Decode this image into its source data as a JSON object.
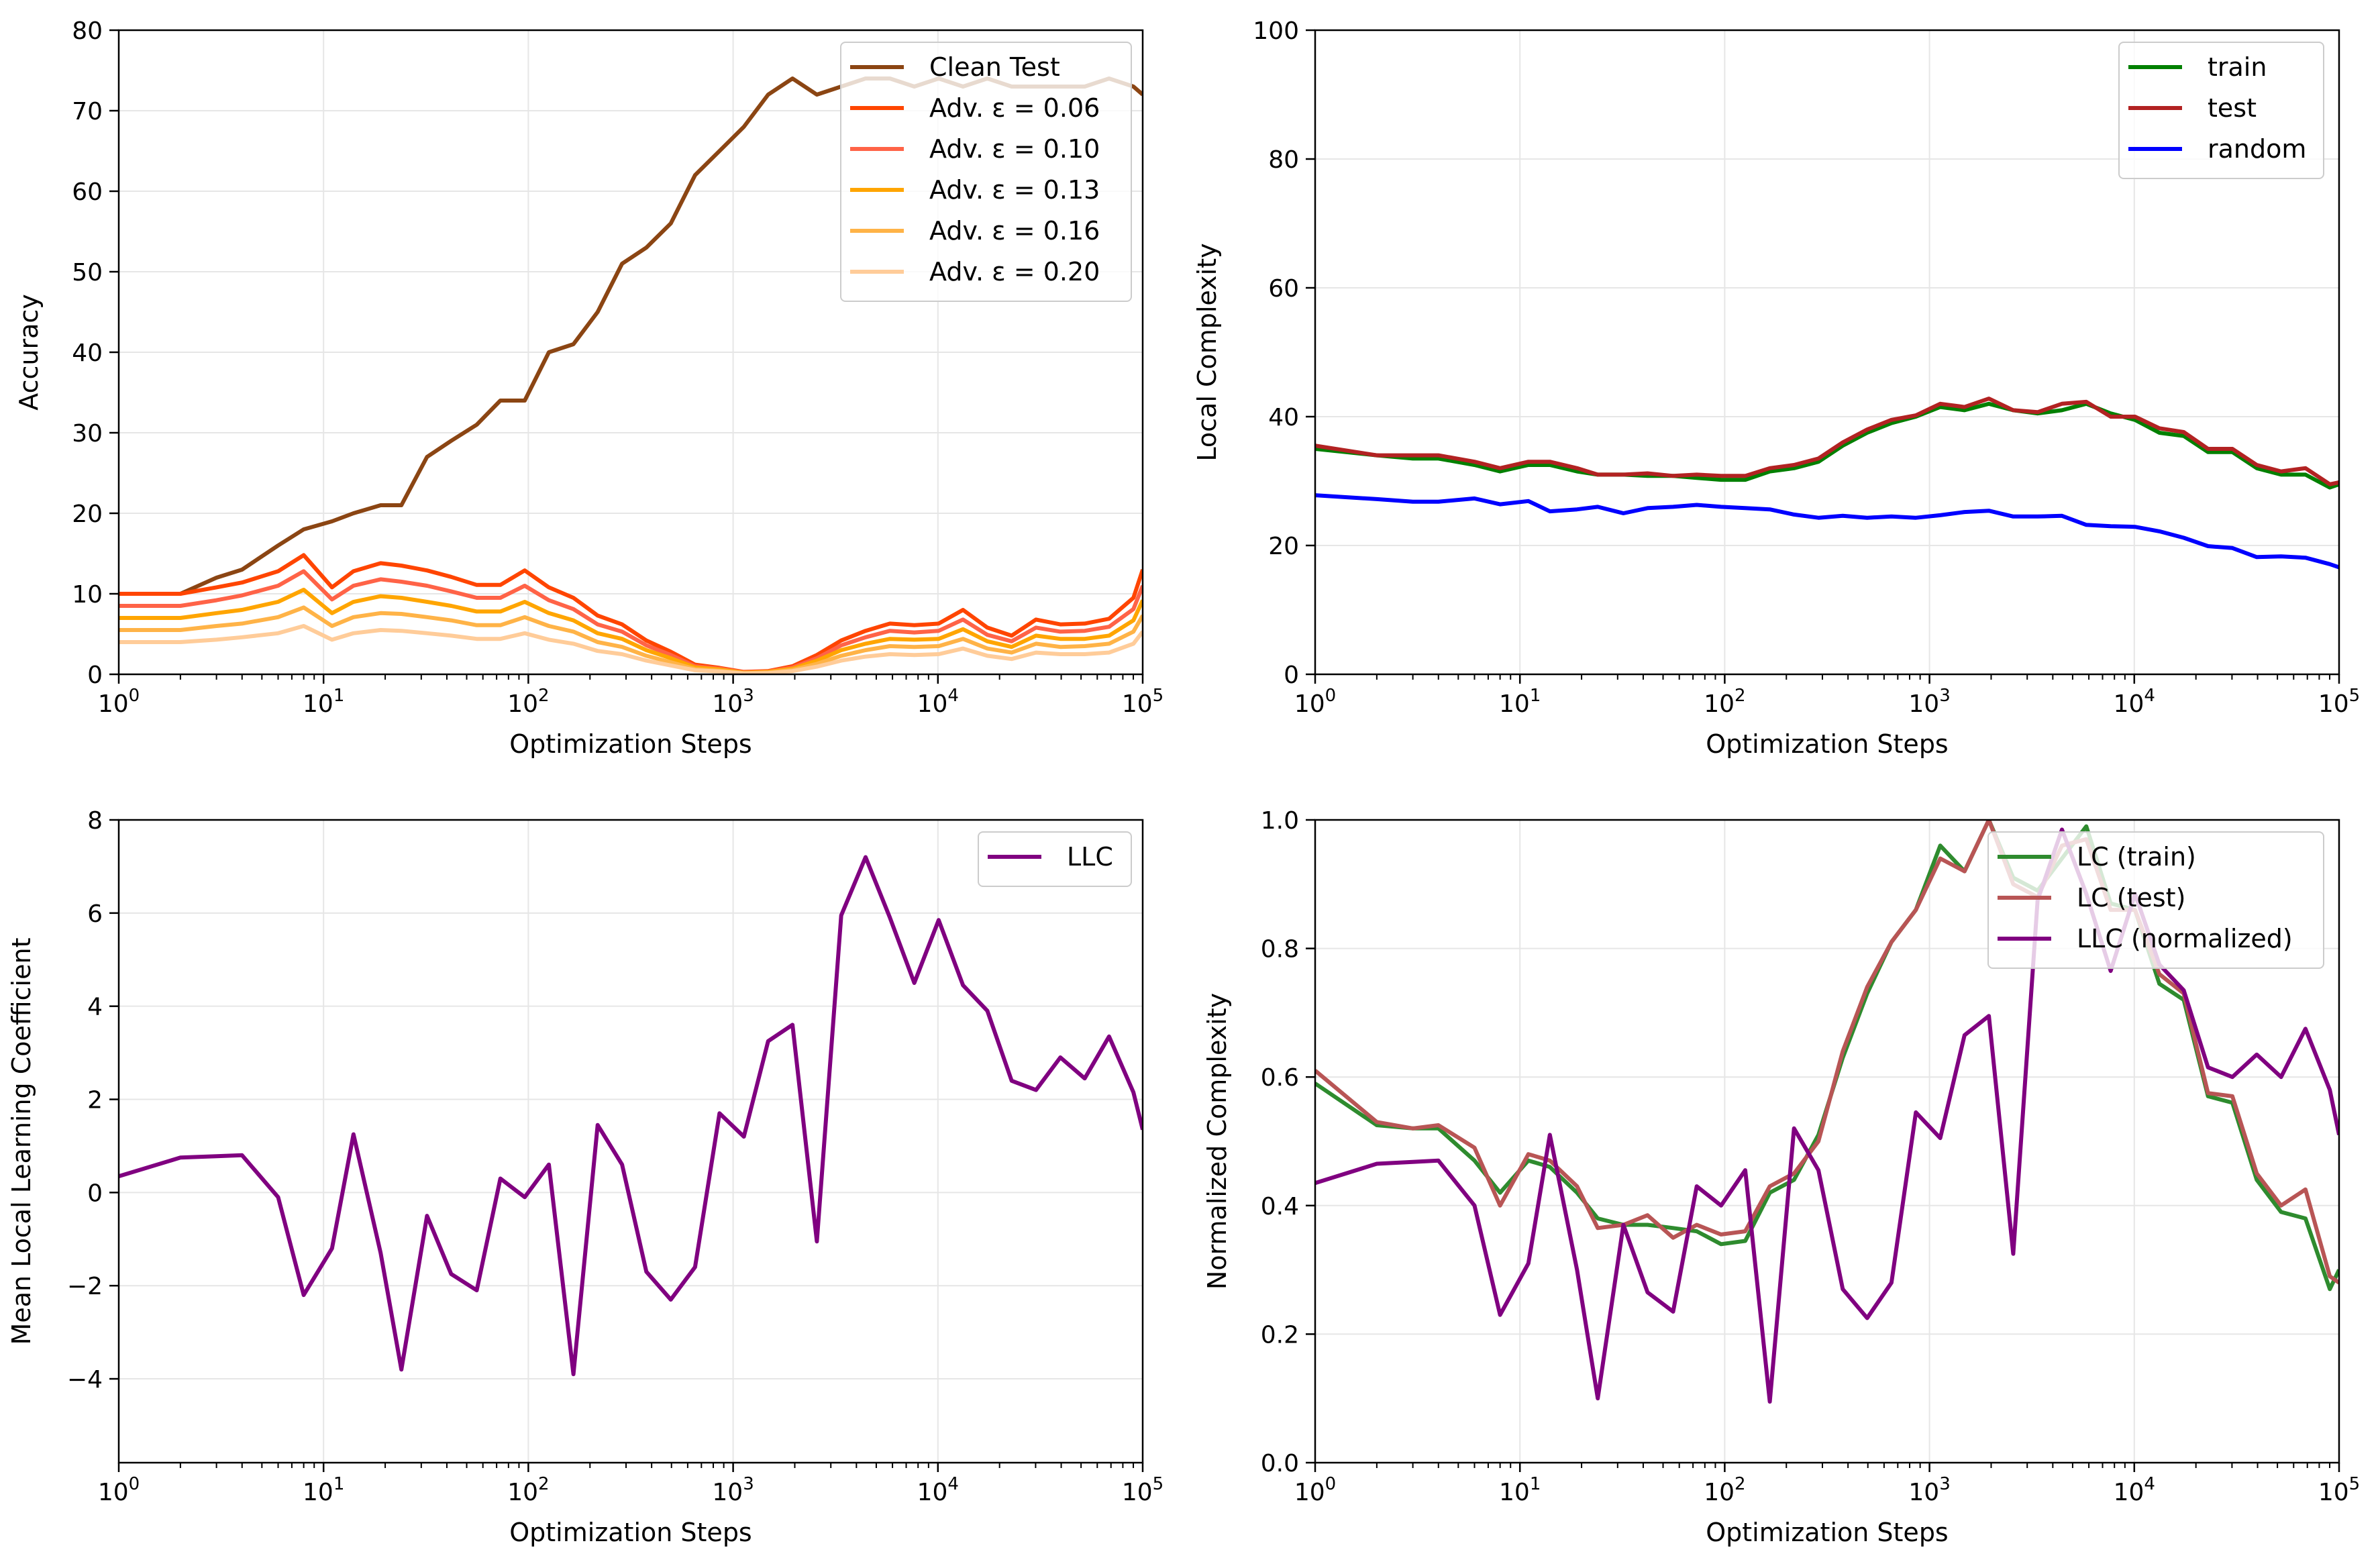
{
  "colors": {
    "clean": "#8B4513",
    "adv006": "#FF4500",
    "adv010": "#FF6347",
    "adv013": "#FFA500",
    "adv016": "#FFB347",
    "adv020": "#FFCC99",
    "train": "#008000",
    "test": "#B22222",
    "random": "#0000FF",
    "llc": "#800080",
    "lc_train_norm": "#2E8B2E",
    "lc_test_norm": "#B85555",
    "grid": "#e6e6e6"
  },
  "chart_data": [
    {
      "id": "accuracy",
      "type": "line",
      "xscale": "log",
      "xlim": [
        1,
        100000
      ],
      "ylim": [
        0,
        80
      ],
      "xlabel": "Optimization Steps",
      "ylabel": "Accuracy",
      "yticks": [
        "0",
        "10",
        "20",
        "30",
        "40",
        "50",
        "60",
        "70",
        "80"
      ],
      "legend_placement": "top-right",
      "grid": true,
      "x": [
        1,
        2,
        3,
        4,
        6,
        8,
        11,
        14,
        19,
        24,
        32,
        42,
        56,
        73,
        96,
        126,
        166,
        218,
        287,
        377,
        496,
        652,
        858,
        1128,
        1483,
        1950,
        2564,
        3372,
        4434,
        5830,
        7667,
        10081,
        13256,
        17432,
        22922,
        30142,
        39636,
        52120,
        68535,
        90121,
        100000
      ],
      "series": [
        {
          "name": "Clean Test",
          "color_key": "clean",
          "values": [
            10,
            10,
            12,
            13,
            16,
            18,
            19,
            20,
            21,
            21,
            27,
            29,
            31,
            34,
            34,
            40,
            41,
            45,
            51,
            53,
            56,
            62,
            65,
            68,
            72,
            74,
            72,
            73,
            74,
            74,
            73,
            74,
            73,
            74,
            73,
            73,
            73,
            73,
            74,
            73,
            72
          ]
        },
        {
          "name": "Adv. ε = 0.06",
          "color_key": "adv006",
          "values": [
            10,
            10,
            10.8,
            11.4,
            12.8,
            14.8,
            10.8,
            12.8,
            13.8,
            13.5,
            12.9,
            12.1,
            11.1,
            11.1,
            12.9,
            10.8,
            9.5,
            7.3,
            6.2,
            4.2,
            2.8,
            1.2,
            0.8,
            0.3,
            0.4,
            1.0,
            2.4,
            4.2,
            5.4,
            6.3,
            6.1,
            6.3,
            8.0,
            5.8,
            4.8,
            6.8,
            6.2,
            6.3,
            6.9,
            9.5,
            13.0
          ]
        },
        {
          "name": "Adv. ε = 0.10",
          "color_key": "adv010",
          "values": [
            8.5,
            8.5,
            9.2,
            9.8,
            11.0,
            12.8,
            9.3,
            11.0,
            11.8,
            11.5,
            11.0,
            10.3,
            9.5,
            9.5,
            11.0,
            9.2,
            8.1,
            6.2,
            5.3,
            3.6,
            2.4,
            1.0,
            0.7,
            0.25,
            0.35,
            0.85,
            2.0,
            3.6,
            4.6,
            5.4,
            5.2,
            5.4,
            6.8,
            4.9,
            4.1,
            5.8,
            5.3,
            5.4,
            5.9,
            8.1,
            11.0
          ]
        },
        {
          "name": "Adv. ε = 0.13",
          "color_key": "adv013",
          "values": [
            7.0,
            7.0,
            7.6,
            8.0,
            9.0,
            10.5,
            7.6,
            9.0,
            9.7,
            9.5,
            9.0,
            8.5,
            7.8,
            7.8,
            9.0,
            7.6,
            6.7,
            5.1,
            4.4,
            3.0,
            2.0,
            0.85,
            0.6,
            0.2,
            0.3,
            0.7,
            1.7,
            3.0,
            3.8,
            4.4,
            4.3,
            4.4,
            5.6,
            4.1,
            3.4,
            4.8,
            4.4,
            4.4,
            4.8,
            6.7,
            9.2
          ]
        },
        {
          "name": "Adv. ε = 0.16",
          "color_key": "adv016",
          "values": [
            5.5,
            5.5,
            6.0,
            6.3,
            7.1,
            8.3,
            6.0,
            7.1,
            7.6,
            7.5,
            7.1,
            6.7,
            6.1,
            6.1,
            7.1,
            6.0,
            5.3,
            4.0,
            3.4,
            2.3,
            1.5,
            0.65,
            0.45,
            0.15,
            0.22,
            0.55,
            1.3,
            2.3,
            3.0,
            3.5,
            3.4,
            3.5,
            4.4,
            3.2,
            2.7,
            3.8,
            3.4,
            3.5,
            3.8,
            5.3,
            7.3
          ]
        },
        {
          "name": "Adv. ε = 0.20",
          "color_key": "adv020",
          "values": [
            4.0,
            4.0,
            4.3,
            4.6,
            5.1,
            6.0,
            4.3,
            5.1,
            5.5,
            5.4,
            5.1,
            4.8,
            4.4,
            4.4,
            5.1,
            4.3,
            3.8,
            2.9,
            2.5,
            1.7,
            1.1,
            0.5,
            0.35,
            0.1,
            0.15,
            0.4,
            0.95,
            1.7,
            2.2,
            2.5,
            2.4,
            2.5,
            3.2,
            2.3,
            1.9,
            2.7,
            2.5,
            2.5,
            2.7,
            3.8,
            5.3
          ]
        }
      ]
    },
    {
      "id": "local-complexity",
      "type": "line",
      "xscale": "log",
      "xlim": [
        1,
        100000
      ],
      "ylim": [
        0,
        100
      ],
      "xlabel": "Optimization Steps",
      "ylabel": "Local Complexity",
      "yticks": [
        "0",
        "20",
        "40",
        "60",
        "80",
        "100"
      ],
      "legend_placement": "top-right",
      "grid": true,
      "x": [
        1,
        2,
        3,
        4,
        6,
        8,
        11,
        14,
        19,
        24,
        32,
        42,
        56,
        73,
        96,
        126,
        166,
        218,
        287,
        377,
        496,
        652,
        858,
        1128,
        1483,
        1950,
        2564,
        3372,
        4434,
        5830,
        7667,
        10081,
        13256,
        17432,
        22922,
        30142,
        39636,
        52120,
        68535,
        90121,
        100000
      ],
      "series": [
        {
          "name": "train",
          "color_key": "train",
          "values": [
            35,
            34,
            33.5,
            33.5,
            32.5,
            31.5,
            32.5,
            32.5,
            31.5,
            31,
            31,
            30.8,
            30.8,
            30.5,
            30.2,
            30.2,
            31.5,
            32,
            33,
            35.5,
            37.5,
            39,
            40,
            41.5,
            41,
            42,
            41,
            40.5,
            41,
            42,
            40.5,
            39.5,
            37.5,
            37,
            34.5,
            34.5,
            32,
            31,
            31,
            29,
            29.5
          ]
        },
        {
          "name": "test",
          "color_key": "test",
          "values": [
            35.5,
            34,
            34,
            34,
            33,
            32,
            33,
            33,
            32,
            31,
            31,
            31.2,
            30.8,
            31,
            30.8,
            30.8,
            32,
            32.5,
            33.5,
            36,
            38,
            39.5,
            40.2,
            42,
            41.5,
            42.8,
            41,
            40.7,
            42,
            42.3,
            40,
            40,
            38.2,
            37.6,
            35,
            35,
            32.5,
            31.5,
            32,
            29.5,
            29.8
          ]
        },
        {
          "name": "random",
          "color_key": "random",
          "values": [
            27.8,
            27.2,
            26.8,
            26.8,
            27.3,
            26.4,
            26.9,
            25.3,
            25.6,
            26,
            25,
            25.8,
            26,
            26.3,
            26,
            25.8,
            25.6,
            24.8,
            24.3,
            24.6,
            24.3,
            24.5,
            24.3,
            24.7,
            25.2,
            25.4,
            24.5,
            24.5,
            24.6,
            23.2,
            23,
            22.9,
            22.2,
            21.2,
            19.9,
            19.6,
            18.2,
            18.3,
            18.1,
            17.1,
            16.6
          ]
        }
      ]
    },
    {
      "id": "llc",
      "type": "line",
      "xscale": "log",
      "xlim": [
        1,
        100000
      ],
      "ylim": [
        -5.8,
        8
      ],
      "xlabel": "Optimization Steps",
      "ylabel": "Mean Local Learning Coefficient",
      "yticks": [
        "−4",
        "−2",
        "0",
        "2",
        "4",
        "6",
        "8"
      ],
      "legend_placement": "top-right",
      "grid": true,
      "x": [
        1,
        2,
        3,
        4,
        6,
        8,
        11,
        14,
        19,
        24,
        32,
        42,
        56,
        73,
        96,
        126,
        166,
        218,
        287,
        377,
        496,
        652,
        858,
        1128,
        1483,
        1950,
        2564,
        3372,
        4434,
        5830,
        7667,
        10081,
        13256,
        17432,
        22922,
        30142,
        39636,
        52120,
        68535,
        90121,
        100000
      ],
      "series": [
        {
          "name": "LLC",
          "color_key": "llc",
          "values": [
            0.35,
            0.75,
            0.78,
            0.8,
            -0.1,
            -2.2,
            -1.2,
            1.25,
            -1.3,
            -3.8,
            -0.5,
            -1.75,
            -2.1,
            0.3,
            -0.1,
            0.6,
            -3.9,
            1.45,
            0.6,
            -1.7,
            -2.3,
            -1.6,
            1.7,
            1.2,
            3.25,
            3.6,
            -1.05,
            5.95,
            7.2,
            5.9,
            4.5,
            5.85,
            4.45,
            3.9,
            2.4,
            2.2,
            2.9,
            2.45,
            3.35,
            2.15,
            1.35
          ]
        }
      ]
    },
    {
      "id": "normalized-complexity",
      "type": "line",
      "xscale": "log",
      "xlim": [
        1,
        100000
      ],
      "ylim": [
        0,
        1
      ],
      "xlabel": "Optimization Steps",
      "ylabel": "Normalized Complexity",
      "yticks": [
        "0.0",
        "0.2",
        "0.4",
        "0.6",
        "0.8",
        "1.0"
      ],
      "legend_placement": "top-right",
      "grid": true,
      "x": [
        1,
        2,
        3,
        4,
        6,
        8,
        11,
        14,
        19,
        24,
        32,
        42,
        56,
        73,
        96,
        126,
        166,
        218,
        287,
        377,
        496,
        652,
        858,
        1128,
        1483,
        1950,
        2564,
        3372,
        4434,
        5830,
        7667,
        10081,
        13256,
        17432,
        22922,
        30142,
        39636,
        52120,
        68535,
        90121,
        100000
      ],
      "series": [
        {
          "name": "LC (train)",
          "color_key": "lc_train_norm",
          "values": [
            0.59,
            0.525,
            0.52,
            0.52,
            0.47,
            0.42,
            0.47,
            0.46,
            0.42,
            0.38,
            0.37,
            0.37,
            0.365,
            0.36,
            0.34,
            0.345,
            0.42,
            0.44,
            0.51,
            0.63,
            0.73,
            0.81,
            0.86,
            0.96,
            0.92,
            1.0,
            0.91,
            0.89,
            0.94,
            0.99,
            0.87,
            0.86,
            0.745,
            0.72,
            0.57,
            0.56,
            0.44,
            0.39,
            0.38,
            0.27,
            0.3
          ]
        },
        {
          "name": "LC (test)",
          "color_key": "lc_test_norm",
          "values": [
            0.61,
            0.53,
            0.52,
            0.525,
            0.49,
            0.4,
            0.48,
            0.47,
            0.43,
            0.365,
            0.37,
            0.385,
            0.35,
            0.37,
            0.355,
            0.36,
            0.43,
            0.45,
            0.5,
            0.64,
            0.74,
            0.81,
            0.86,
            0.94,
            0.92,
            1.0,
            0.9,
            0.88,
            0.96,
            0.97,
            0.86,
            0.86,
            0.76,
            0.73,
            0.575,
            0.57,
            0.45,
            0.4,
            0.425,
            0.29,
            0.28
          ]
        },
        {
          "name": "LLC (normalized)",
          "color_key": "llc",
          "values": [
            0.435,
            0.465,
            0.468,
            0.47,
            0.4,
            0.23,
            0.31,
            0.51,
            0.3,
            0.1,
            0.37,
            0.265,
            0.235,
            0.43,
            0.4,
            0.455,
            0.095,
            0.52,
            0.455,
            0.27,
            0.225,
            0.28,
            0.545,
            0.505,
            0.665,
            0.695,
            0.325,
            0.875,
            0.985,
            0.885,
            0.765,
            0.885,
            0.775,
            0.735,
            0.615,
            0.6,
            0.635,
            0.6,
            0.675,
            0.58,
            0.51
          ]
        }
      ]
    }
  ]
}
